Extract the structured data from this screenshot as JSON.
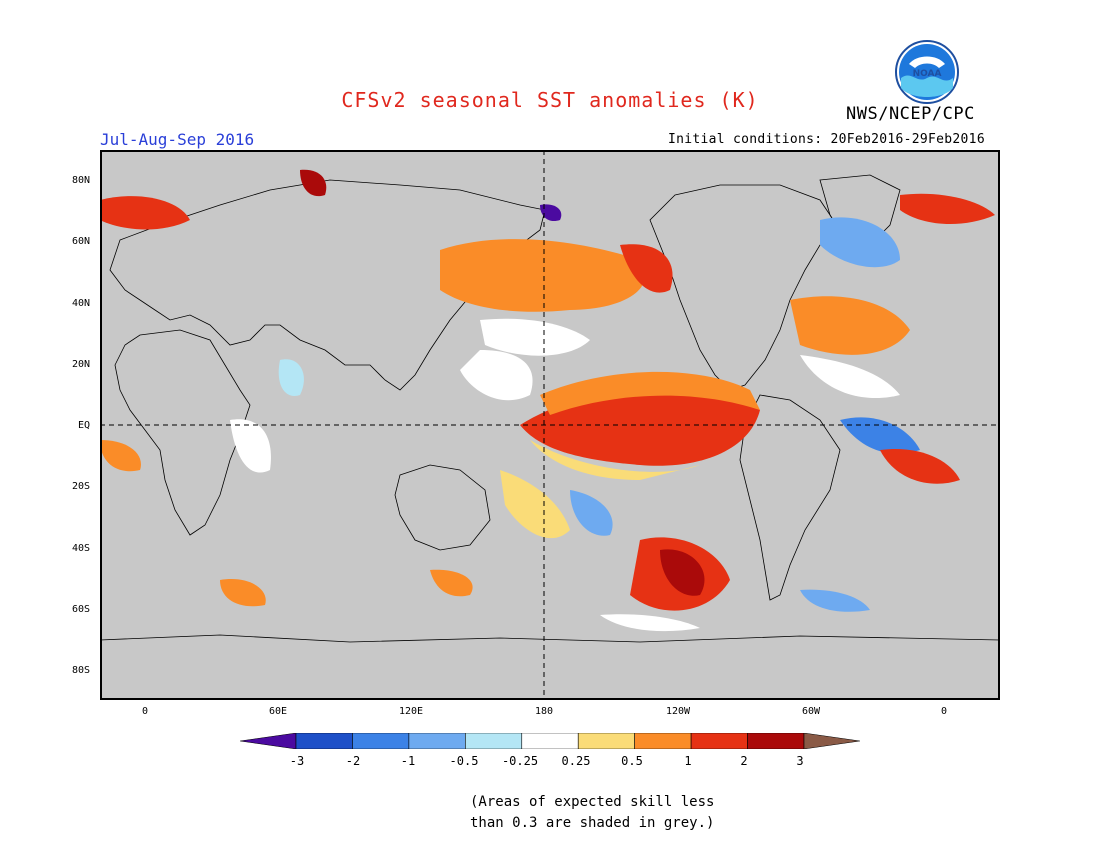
{
  "header": {
    "title": "CFSv2 seasonal SST anomalies (K)",
    "agency": "NWS/NCEP/CPC",
    "season": "Jul-Aug-Sep 2016",
    "initial_conditions": "Initial conditions: 20Feb2016-29Feb2016",
    "logo_text": "NOAA"
  },
  "map": {
    "lat_labels": [
      "80N",
      "60N",
      "40N",
      "20N",
      "EQ",
      "20S",
      "40S",
      "60S",
      "80S"
    ],
    "lon_labels": [
      "0",
      "60E",
      "120E",
      "180",
      "120W",
      "60W",
      "0"
    ]
  },
  "colorbar": {
    "labels": [
      "-3",
      "-2",
      "-1",
      "-0.5",
      "-0.25",
      "0.25",
      "0.5",
      "1",
      "2",
      "3"
    ],
    "colors": [
      "#4b0aa0",
      "#1e50c8",
      "#3c82e6",
      "#6eaaf0",
      "#b4e6f5",
      "#ffffff",
      "#fadc78",
      "#fa8c28",
      "#e63214",
      "#aa0a0a",
      "#8a5a46"
    ]
  },
  "footnote": {
    "line1": "(Areas of expected skill less",
    "line2": "than 0.3 are shaded in grey.)"
  },
  "colors": {
    "no_skill_grey": "#c8c8c8",
    "title_red": "#e0281e",
    "season_blue": "#2a3fd8",
    "noaa_blue": "#1e78dc"
  }
}
